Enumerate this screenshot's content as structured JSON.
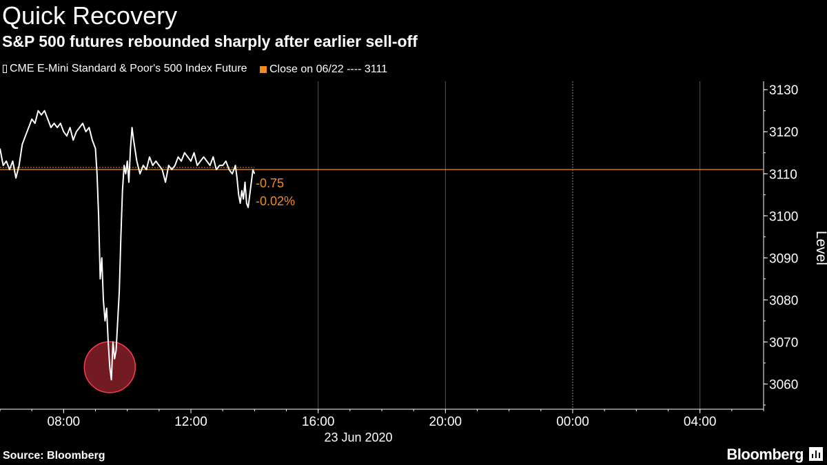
{
  "header": {
    "title": "Quick Recovery",
    "subtitle": "S&P 500 futures rebounded sharply after earlier sell-off"
  },
  "footer": {
    "source": "Source: Bloomberg",
    "brand": "Bloomberg"
  },
  "chart_data": {
    "type": "line",
    "date_label": "23 Jun 2020",
    "ylabel": "Level",
    "ylim": [
      3054,
      3132
    ],
    "yticks": [
      3060,
      3070,
      3080,
      3090,
      3100,
      3110,
      3120,
      3130
    ],
    "xlim_hours": [
      6.0,
      30.0
    ],
    "xticks": [
      {
        "label": "08:00",
        "hour": 8
      },
      {
        "label": "12:00",
        "hour": 12
      },
      {
        "label": "16:00",
        "hour": 16
      },
      {
        "label": "20:00",
        "hour": 20
      },
      {
        "label": "00:00",
        "hour": 24
      },
      {
        "label": "04:00",
        "hour": 28
      }
    ],
    "grid_hours": [
      16,
      20,
      24,
      28
    ],
    "day_boundary_hour": 24,
    "legend": [
      {
        "name": "CME E-Mini Standard & Poor's 500 Index Future",
        "color": "#ffffff"
      },
      {
        "name": "Close on 06/22 ---- 3111",
        "color": "#f28c1e"
      }
    ],
    "reference": {
      "value": 3111,
      "color": "#f28c1e"
    },
    "annotations": {
      "change_abs": "-0.75",
      "change_pct": "-0.02%",
      "color": "#f28c1e"
    },
    "highlight": {
      "hour": 9.45,
      "value": 3064,
      "color": "#ff3b4e"
    },
    "series": [
      {
        "name": "CME E-Mini Standard & Poor's 500 Index Future",
        "color": "#ffffff",
        "x": [
          6.0,
          6.1,
          6.2,
          6.3,
          6.4,
          6.5,
          6.6,
          6.7,
          6.8,
          6.9,
          7.0,
          7.1,
          7.2,
          7.3,
          7.4,
          7.5,
          7.6,
          7.7,
          7.8,
          7.9,
          8.0,
          8.1,
          8.2,
          8.3,
          8.4,
          8.5,
          8.6,
          8.7,
          8.8,
          8.9,
          9.0,
          9.05,
          9.1,
          9.15,
          9.2,
          9.25,
          9.3,
          9.35,
          9.4,
          9.45,
          9.5,
          9.55,
          9.6,
          9.65,
          9.7,
          9.75,
          9.8,
          9.85,
          9.9,
          9.95,
          10.0,
          10.05,
          10.1,
          10.15,
          10.2,
          10.3,
          10.4,
          10.5,
          10.6,
          10.7,
          10.8,
          10.9,
          11.0,
          11.1,
          11.2,
          11.3,
          11.4,
          11.5,
          11.6,
          11.7,
          11.8,
          11.9,
          12.0,
          12.1,
          12.2,
          12.3,
          12.4,
          12.5,
          12.6,
          12.7,
          12.8,
          12.9,
          13.0,
          13.1,
          13.2,
          13.3,
          13.4,
          13.45,
          13.5,
          13.55,
          13.6,
          13.65,
          13.7,
          13.75,
          13.8,
          13.85,
          13.9,
          13.95,
          14.0
        ],
        "values": [
          3116,
          3112,
          3113,
          3111,
          3113,
          3109,
          3112,
          3117,
          3119,
          3121,
          3123,
          3122,
          3125,
          3124,
          3125,
          3123,
          3121,
          3122,
          3121,
          3122,
          3120,
          3119,
          3121,
          3118,
          3120,
          3121,
          3122,
          3120,
          3121,
          3118,
          3116,
          3110,
          3100,
          3085,
          3090,
          3080,
          3075,
          3078,
          3070,
          3064,
          3061,
          3070,
          3066,
          3068,
          3075,
          3082,
          3095,
          3106,
          3112,
          3110,
          3113,
          3108,
          3116,
          3121,
          3118,
          3113,
          3110,
          3112,
          3111,
          3114,
          3112,
          3113,
          3112,
          3111,
          3108,
          3112,
          3111,
          3112,
          3114,
          3113,
          3115,
          3114,
          3113,
          3115,
          3112,
          3113,
          3114,
          3113,
          3112,
          3114,
          3111,
          3112,
          3112,
          3113,
          3111,
          3110,
          3112,
          3109,
          3105,
          3103,
          3106,
          3104,
          3108,
          3103,
          3102,
          3105,
          3108,
          3111,
          3110
        ]
      }
    ]
  }
}
